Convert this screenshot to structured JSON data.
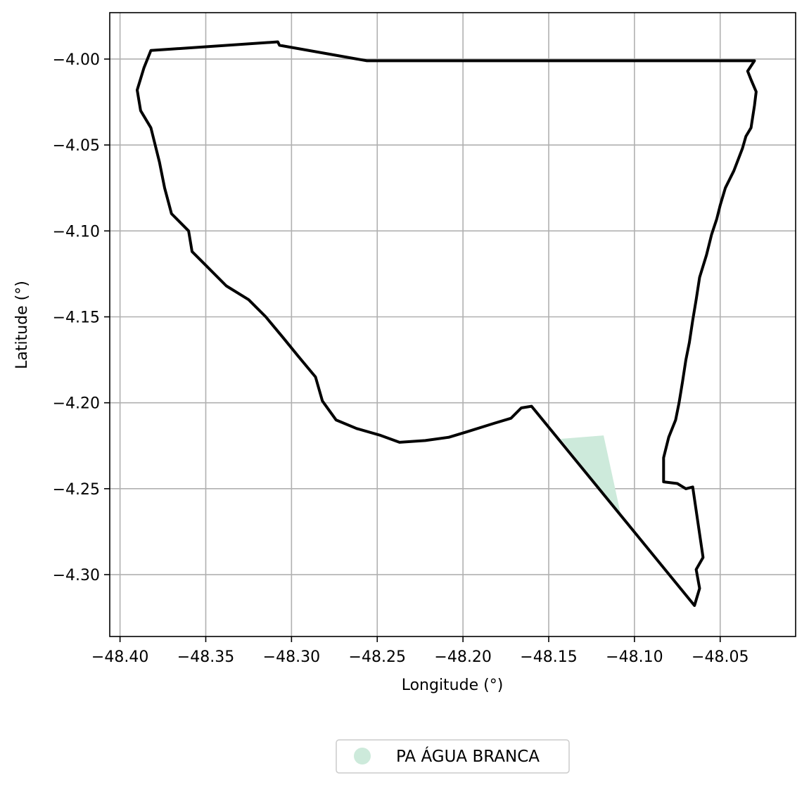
{
  "chart_data": {
    "type": "map",
    "title": "",
    "xlabel": "Longitude (°)",
    "ylabel": "Latitude (°)",
    "xlim": [
      -48.406,
      -48.006
    ],
    "ylim": [
      -4.336,
      -3.973
    ],
    "xticks": [
      -48.4,
      -48.35,
      -48.3,
      -48.25,
      -48.2,
      -48.15,
      -48.1,
      -48.05
    ],
    "xtick_labels": [
      "−48.40",
      "−48.35",
      "−48.30",
      "−48.25",
      "−48.20",
      "−48.15",
      "−48.10",
      "−48.05"
    ],
    "yticks": [
      -4.0,
      -4.05,
      -4.1,
      -4.15,
      -4.2,
      -4.25,
      -4.3
    ],
    "ytick_labels": [
      "−4.00",
      "−4.05",
      "−4.10",
      "−4.15",
      "−4.20",
      "−4.25",
      "−4.30"
    ],
    "grid": true,
    "legend_placement": "bottom-center",
    "legend": [
      {
        "label": "PA ÁGUA BRANCA",
        "color": "#cdeadb"
      }
    ],
    "colors": {
      "boundary": "#000000",
      "settlement_fill": "#cdeadb",
      "grid": "#b0b0b0"
    },
    "boundary_polygon": [
      [
        -48.382,
        -3.995
      ],
      [
        -48.308,
        -3.99
      ],
      [
        -48.307,
        -3.992
      ],
      [
        -48.256,
        -4.001
      ],
      [
        -48.03,
        -4.001
      ],
      [
        -48.034,
        -4.007
      ],
      [
        -48.032,
        -4.012
      ],
      [
        -48.029,
        -4.019
      ],
      [
        -48.03,
        -4.027
      ],
      [
        -48.032,
        -4.04
      ],
      [
        -48.035,
        -4.045
      ],
      [
        -48.037,
        -4.052
      ],
      [
        -48.042,
        -4.065
      ],
      [
        -48.047,
        -4.075
      ],
      [
        -48.05,
        -4.085
      ],
      [
        -48.052,
        -4.093
      ],
      [
        -48.055,
        -4.102
      ],
      [
        -48.058,
        -4.114
      ],
      [
        -48.062,
        -4.127
      ],
      [
        -48.064,
        -4.14
      ],
      [
        -48.066,
        -4.152
      ],
      [
        -48.068,
        -4.165
      ],
      [
        -48.07,
        -4.175
      ],
      [
        -48.072,
        -4.188
      ],
      [
        -48.074,
        -4.2
      ],
      [
        -48.076,
        -4.21
      ],
      [
        -48.08,
        -4.22
      ],
      [
        -48.083,
        -4.232
      ],
      [
        -48.083,
        -4.246
      ],
      [
        -48.075,
        -4.247
      ],
      [
        -48.07,
        -4.25
      ],
      [
        -48.066,
        -4.249
      ],
      [
        -48.06,
        -4.29
      ],
      [
        -48.064,
        -4.297
      ],
      [
        -48.062,
        -4.308
      ],
      [
        -48.065,
        -4.318
      ],
      [
        -48.16,
        -4.202
      ],
      [
        -48.166,
        -4.203
      ],
      [
        -48.172,
        -4.209
      ],
      [
        -48.182,
        -4.212
      ],
      [
        -48.198,
        -4.217
      ],
      [
        -48.208,
        -4.22
      ],
      [
        -48.222,
        -4.222
      ],
      [
        -48.237,
        -4.223
      ],
      [
        -48.248,
        -4.219
      ],
      [
        -48.262,
        -4.215
      ],
      [
        -48.274,
        -4.21
      ],
      [
        -48.282,
        -4.199
      ],
      [
        -48.286,
        -4.185
      ],
      [
        -48.296,
        -4.173
      ],
      [
        -48.305,
        -4.162
      ],
      [
        -48.315,
        -4.15
      ],
      [
        -48.325,
        -4.14
      ],
      [
        -48.338,
        -4.132
      ],
      [
        -48.35,
        -4.12
      ],
      [
        -48.358,
        -4.112
      ],
      [
        -48.36,
        -4.1
      ],
      [
        -48.37,
        -4.09
      ],
      [
        -48.374,
        -4.075
      ],
      [
        -48.377,
        -4.06
      ],
      [
        -48.382,
        -4.04
      ],
      [
        -48.388,
        -4.03
      ],
      [
        -48.39,
        -4.018
      ],
      [
        -48.386,
        -4.005
      ],
      [
        -48.382,
        -3.995
      ]
    ],
    "settlement_polygon": [
      [
        -48.143,
        -4.221
      ],
      [
        -48.118,
        -4.219
      ],
      [
        -48.108,
        -4.265
      ],
      [
        -48.143,
        -4.221
      ]
    ]
  }
}
